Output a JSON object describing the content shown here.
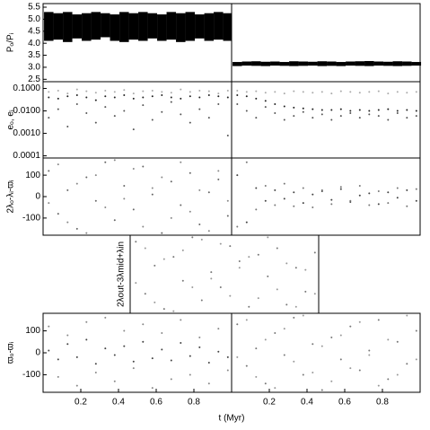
{
  "chart_data": [
    {
      "type": "band",
      "ylabel": "Pₒ/Pᵢ",
      "xlim": [
        0,
        1
      ],
      "ylim": [
        2.4,
        5.65
      ],
      "yticks": [
        2.5,
        {
          "value": 3,
          "label": "3.0"
        },
        3.5,
        {
          "value": 4,
          "label": "4.0"
        },
        4.5,
        {
          "value": 5,
          "label": "5.0"
        },
        5.5
      ],
      "x": [
        0.03,
        0.08,
        0.13,
        0.18,
        0.23,
        0.28,
        0.33,
        0.38,
        0.43,
        0.48,
        0.53,
        0.58,
        0.63,
        0.68,
        0.73,
        0.78,
        0.83,
        0.88,
        0.93,
        0.98
      ],
      "series": [
        {
          "color": "#000000",
          "values": [
            4.1,
            4.15,
            4.05,
            4.2,
            4.1,
            4.15,
            4.25,
            4.1,
            4.05,
            4.15,
            4.1,
            4.2,
            4.1,
            4.15,
            4.05,
            4.1,
            4.2,
            4.1,
            4.15,
            4.1
          ]
        },
        {
          "color": "#000000",
          "values": [
            5.3,
            5.25,
            5.3,
            5.2,
            5.25,
            5.3,
            5.25,
            5.2,
            5.3,
            5.25,
            5.3,
            5.25,
            5.2,
            5.3,
            5.25,
            5.3,
            5.2,
            5.25,
            5.3,
            5.25
          ]
        }
      ]
    },
    {
      "type": "band",
      "xlim": [
        0,
        1
      ],
      "ylim": [
        2.4,
        5.65
      ],
      "x": [
        0.03,
        0.08,
        0.13,
        0.18,
        0.23,
        0.28,
        0.33,
        0.38,
        0.43,
        0.48,
        0.53,
        0.58,
        0.63,
        0.68,
        0.73,
        0.78,
        0.83,
        0.88,
        0.93,
        0.98
      ],
      "series": [
        {
          "color": "#000000",
          "values": [
            3.05,
            3.07,
            3.06,
            3.05,
            3.07,
            3.06,
            3.05,
            3.06,
            3.07,
            3.05,
            3.06,
            3.05,
            3.07,
            3.06,
            3.05,
            3.07,
            3.06,
            3.05,
            3.06,
            3.07
          ]
        },
        {
          "color": "#000000",
          "values": [
            3.22,
            3.24,
            3.25,
            3.23,
            3.24,
            3.22,
            3.25,
            3.24,
            3.23,
            3.25,
            3.24,
            3.22,
            3.24,
            3.25,
            3.26,
            3.24,
            3.23,
            3.25,
            3.24,
            3.22
          ]
        }
      ]
    },
    {
      "type": "scatter",
      "ylabel": "eₒ, eᵢ",
      "log_y": true,
      "xlim": [
        0,
        1
      ],
      "ylim": [
        8e-05,
        0.2
      ],
      "yticks": [
        {
          "value": 0.1,
          "label": "0.1000"
        },
        {
          "value": 0.01,
          "label": "0.0100"
        },
        {
          "value": 0.001,
          "label": "0.0010"
        },
        {
          "value": 0.0001,
          "label": "0.0001"
        }
      ],
      "x": [
        0.03,
        0.08,
        0.13,
        0.18,
        0.23,
        0.28,
        0.33,
        0.38,
        0.43,
        0.48,
        0.53,
        0.58,
        0.63,
        0.68,
        0.73,
        0.78,
        0.83,
        0.88,
        0.93,
        0.98
      ],
      "series": [
        {
          "color": "#aaaaaa",
          "values": [
            0.07,
            0.08,
            0.06,
            0.09,
            0.075,
            0.065,
            0.08,
            0.07,
            0.085,
            0.06,
            0.075,
            0.08,
            0.07,
            0.065,
            0.09,
            0.07,
            0.08,
            0.075,
            0.06,
            0.08
          ]
        },
        {
          "color": "#222222",
          "values": [
            0.04,
            0.035,
            0.045,
            0.05,
            0.04,
            0.03,
            0.045,
            0.04,
            0.05,
            0.035,
            0.04,
            0.045,
            0.05,
            0.04,
            0.035,
            0.045,
            0.04,
            0.05,
            0.045,
            0.04
          ]
        },
        {
          "color": "#555555",
          "values": [
            0.005,
            0.012,
            0.002,
            0.02,
            0.008,
            0.003,
            0.015,
            0.006,
            0.01,
            0.0015,
            0.018,
            0.004,
            0.009,
            0.025,
            0.007,
            0.003,
            0.012,
            0.005,
            0.02,
            0.0008
          ]
        }
      ]
    },
    {
      "type": "scatter",
      "log_y": true,
      "xlim": [
        0,
        1
      ],
      "ylim": [
        8e-05,
        0.2
      ],
      "x": [
        0.03,
        0.08,
        0.13,
        0.18,
        0.23,
        0.28,
        0.33,
        0.38,
        0.43,
        0.48,
        0.53,
        0.58,
        0.63,
        0.68,
        0.73,
        0.78,
        0.83,
        0.88,
        0.93,
        0.98
      ],
      "series": [
        {
          "color": "#aaaaaa",
          "values": [
            0.08,
            0.07,
            0.075,
            0.065,
            0.07,
            0.06,
            0.075,
            0.07,
            0.065,
            0.07,
            0.06,
            0.075,
            0.07,
            0.065,
            0.07,
            0.075,
            0.06,
            0.07,
            0.065,
            0.07
          ]
        },
        {
          "color": "#222222",
          "values": [
            0.05,
            0.045,
            0.035,
            0.028,
            0.02,
            0.016,
            0.014,
            0.013,
            0.012,
            0.011,
            0.011,
            0.012,
            0.01,
            0.011,
            0.01,
            0.011,
            0.012,
            0.01,
            0.011,
            0.01
          ]
        },
        {
          "color": "#555555",
          "values": [
            0.02,
            0.01,
            0.005,
            0.015,
            0.008,
            0.004,
            0.006,
            0.009,
            0.005,
            0.007,
            0.004,
            0.006,
            0.008,
            0.005,
            0.007,
            0.006,
            0.004,
            0.008,
            0.005,
            0.006
          ]
        }
      ]
    },
    {
      "type": "scatter",
      "ylabel": "2λₒ-λᵢ-ϖᵢ",
      "xlim": [
        0,
        1
      ],
      "ylim": [
        -180,
        180
      ],
      "yticks": [
        100,
        0,
        -100
      ],
      "x": [
        0.03,
        0.08,
        0.13,
        0.18,
        0.23,
        0.28,
        0.33,
        0.38,
        0.43,
        0.48,
        0.53,
        0.58,
        0.63,
        0.68,
        0.73,
        0.78,
        0.83,
        0.88,
        0.93,
        0.98
      ],
      "series": [
        {
          "color": "#666666",
          "values": [
            120,
            -80,
            30,
            -150,
            90,
            -20,
            160,
            -110,
            50,
            -60,
            140,
            10,
            -170,
            70,
            -40,
            110,
            -130,
            20,
            80,
            -90
          ]
        },
        {
          "color": "#888888",
          "values": [
            -30,
            150,
            -120,
            60,
            -170,
            100,
            -50,
            170,
            -10,
            130,
            -140,
            40,
            90,
            -100,
            160,
            -70,
            30,
            -160,
            120,
            -20
          ]
        }
      ]
    },
    {
      "type": "scatter",
      "xlim": [
        0,
        1
      ],
      "ylim": [
        -180,
        180
      ],
      "x": [
        0.03,
        0.08,
        0.13,
        0.18,
        0.23,
        0.28,
        0.33,
        0.38,
        0.43,
        0.48,
        0.53,
        0.58,
        0.63,
        0.68,
        0.73,
        0.78,
        0.83,
        0.88,
        0.93,
        0.98
      ],
      "series": [
        {
          "color": "#444444",
          "values": [
            100,
            -120,
            40,
            -20,
            30,
            -10,
            20,
            -30,
            10,
            25,
            -15,
            35,
            -25,
            5,
            15,
            -35,
            20,
            -5,
            30,
            -20
          ]
        },
        {
          "color": "#777777",
          "values": [
            -140,
            160,
            -60,
            50,
            -40,
            60,
            -45,
            40,
            -50,
            30,
            -35,
            45,
            -20,
            50,
            -40,
            25,
            -30,
            40,
            -45,
            35
          ]
        }
      ]
    },
    {
      "type": "scatter",
      "ylabel": "2λout-3λmid+λin",
      "xlim": [
        0,
        1
      ],
      "ylim": [
        -180,
        180
      ],
      "x": [
        0.03,
        0.08,
        0.13,
        0.18,
        0.23,
        0.28,
        0.33,
        0.38,
        0.43,
        0.48,
        0.53,
        0.58,
        0.63,
        0.68,
        0.73,
        0.78,
        0.83,
        0.88,
        0.93,
        0.98
      ],
      "series": [
        {
          "color": "#777777",
          "values": [
            150,
            -90,
            40,
            -160,
            80,
            -30,
            170,
            -120,
            10,
            -60,
            130,
            60,
            -150,
            90,
            -10,
            120,
            -140,
            30,
            -80,
            100
          ]
        },
        {
          "color": "#999999",
          "values": [
            -40,
            120,
            -130,
            70,
            -170,
            110,
            -60,
            160,
            -20,
            140,
            -100,
            30,
            80,
            -110,
            170,
            -70,
            50,
            -150,
            20,
            -90
          ]
        }
      ]
    },
    {
      "type": "scatter",
      "ylabel": "ϖₒ-ϖᵢ",
      "xlabel": "t (Myr)",
      "xlim": [
        0,
        1
      ],
      "ylim": [
        -180,
        180
      ],
      "yticks": [
        100,
        0,
        -100
      ],
      "xticks": [
        0.2,
        0.4,
        0.6,
        0.8
      ],
      "x": [
        0.03,
        0.08,
        0.13,
        0.18,
        0.23,
        0.28,
        0.33,
        0.38,
        0.43,
        0.48,
        0.53,
        0.58,
        0.63,
        0.68,
        0.73,
        0.78,
        0.83,
        0.88,
        0.93,
        0.98
      ],
      "series": [
        {
          "color": "#444444",
          "values": [
            10,
            -30,
            40,
            -20,
            60,
            -50,
            20,
            -10,
            30,
            -40,
            50,
            -25,
            15,
            -35,
            45,
            -15,
            25,
            -45,
            5,
            -20
          ]
        },
        {
          "color": "#888888",
          "values": [
            120,
            -110,
            80,
            -150,
            140,
            -90,
            160,
            -130,
            100,
            -70,
            130,
            -160,
            90,
            -120,
            150,
            -100,
            70,
            -140,
            110,
            -80
          ]
        }
      ]
    },
    {
      "type": "scatter",
      "xlim": [
        0,
        1
      ],
      "ylim": [
        -180,
        180
      ],
      "xticks": [
        0.2,
        0.4,
        0.6,
        0.8
      ],
      "x": [
        0.03,
        0.08,
        0.13,
        0.18,
        0.23,
        0.28,
        0.33,
        0.38,
        0.43,
        0.48,
        0.53,
        0.58,
        0.63,
        0.68,
        0.73,
        0.78,
        0.83,
        0.88,
        0.93,
        0.98
      ],
      "series": [
        {
          "color": "#777777",
          "values": [
            130,
            -60,
            20,
            -140,
            90,
            -10,
            160,
            -100,
            40,
            -170,
            70,
            -30,
            120,
            -80,
            10,
            150,
            -120,
            50,
            -50,
            100
          ]
        },
        {
          "color": "#999999",
          "values": [
            -20,
            150,
            -110,
            60,
            -160,
            110,
            -40,
            170,
            -90,
            30,
            -130,
            80,
            -70,
            140,
            -10,
            -150,
            60,
            -100,
            170,
            -30
          ]
        }
      ]
    }
  ]
}
